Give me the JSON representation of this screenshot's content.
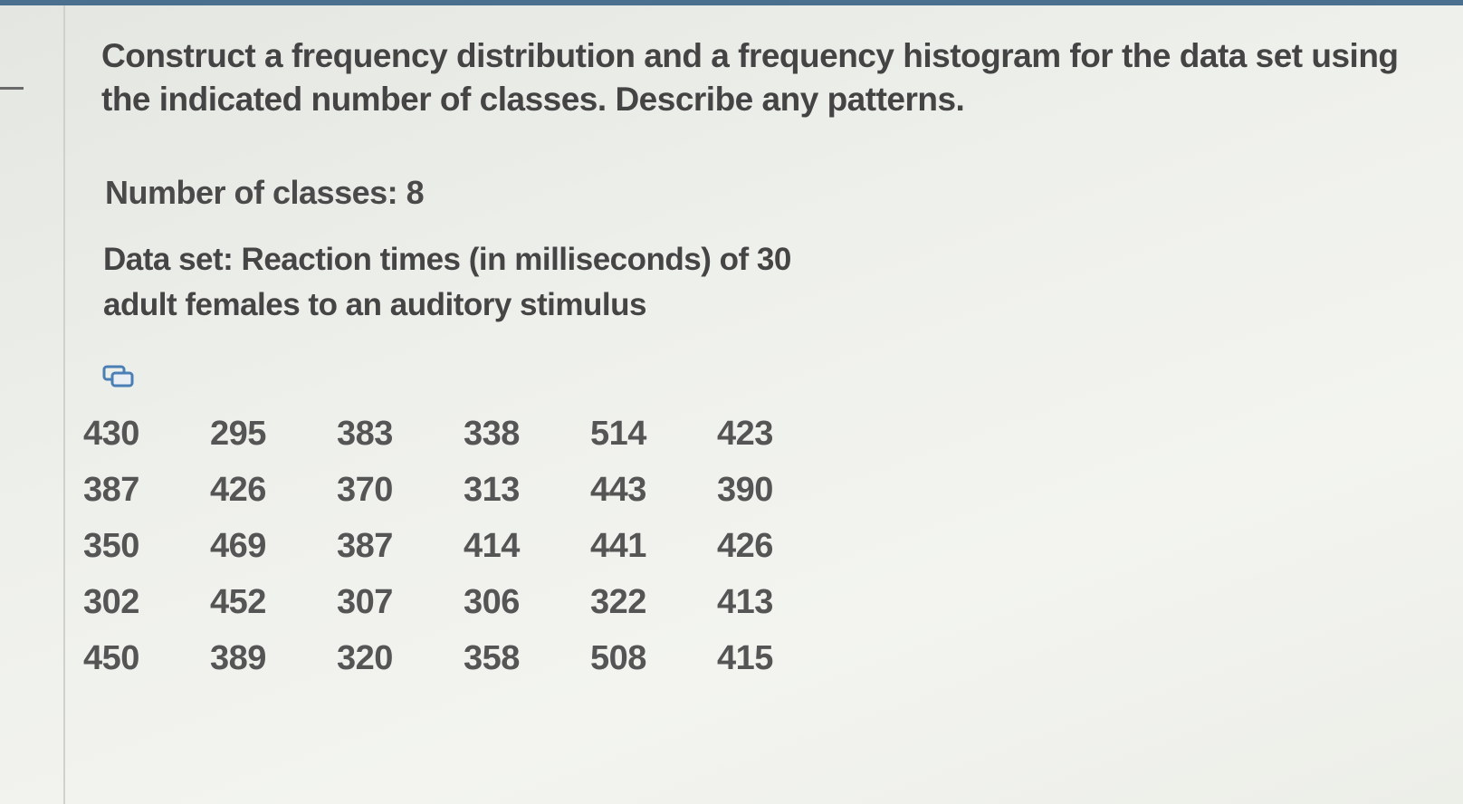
{
  "question": "Construct a frequency distribution and a frequency histogram for the data set using the indicated number of classes. Describe any patterns.",
  "number_of_classes": "Number of classes: 8",
  "data_set": "Data set: Reaction times (in milliseconds) of 30 adult females to an auditory stimulus",
  "table": {
    "rows": [
      [
        430,
        295,
        383,
        338,
        514,
        423
      ],
      [
        387,
        426,
        370,
        313,
        443,
        390
      ],
      [
        350,
        469,
        387,
        414,
        441,
        426
      ],
      [
        302,
        452,
        307,
        306,
        322,
        413
      ],
      [
        450,
        389,
        320,
        358,
        508,
        415
      ]
    ]
  }
}
